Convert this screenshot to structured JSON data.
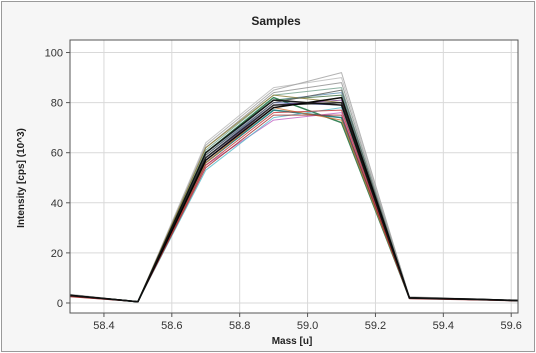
{
  "chart_data": {
    "type": "line",
    "title": "Samples",
    "xlabel": "Mass [u]",
    "ylabel": "Intensity [cps] (10^3)",
    "xlim": [
      58.3,
      59.62
    ],
    "ylim": [
      -4,
      105
    ],
    "x_tick_labels": [
      "58.4",
      "58.6",
      "58.8",
      "59.0",
      "59.2",
      "59.4",
      "59.6"
    ],
    "y_tick_labels": [
      "0",
      "20",
      "40",
      "60",
      "80",
      "100"
    ],
    "grid": true,
    "legend": "none",
    "x": [
      58.3,
      58.5,
      58.7,
      58.9,
      59.1,
      59.3,
      59.5,
      59.62
    ],
    "series": [
      {
        "color": "#b8b8b8",
        "values": [
          3.5,
          0.5,
          64,
          86,
          90,
          2.5,
          1.6,
          1.1
        ]
      },
      {
        "color": "#a0a0a0",
        "values": [
          3.4,
          0.5,
          63,
          85,
          92,
          2.4,
          1.5,
          1.0
        ]
      },
      {
        "color": "#8c8c8c",
        "values": [
          3.2,
          0.5,
          62,
          84,
          88,
          2.2,
          1.5,
          1.0
        ]
      },
      {
        "color": "#6f9e8a",
        "values": [
          3.0,
          0.5,
          61,
          83,
          86,
          2.1,
          1.4,
          1.0
        ]
      },
      {
        "color": "#5b8fb0",
        "values": [
          3.0,
          0.5,
          59,
          81,
          84,
          2.0,
          1.4,
          0.9
        ]
      },
      {
        "color": "#2e7d4f",
        "values": [
          3.0,
          0.5,
          60,
          82,
          72,
          2.0,
          1.4,
          0.9
        ]
      },
      {
        "color": "#3d6e3d",
        "values": [
          3.0,
          0.5,
          60,
          81,
          83,
          2.0,
          1.4,
          0.9
        ]
      },
      {
        "color": "#1f7a7a",
        "values": [
          2.9,
          0.5,
          56,
          77,
          74,
          1.9,
          1.4,
          0.9
        ]
      },
      {
        "color": "#3a4fa0",
        "values": [
          2.9,
          0.5,
          58,
          80,
          79,
          2.0,
          1.4,
          0.9
        ]
      },
      {
        "color": "#7a3f8f",
        "values": [
          2.8,
          0.5,
          57,
          79,
          81,
          1.9,
          1.3,
          0.9
        ]
      },
      {
        "color": "#c060c0",
        "values": [
          2.8,
          0.5,
          55,
          73,
          76,
          1.9,
          1.3,
          0.9
        ]
      },
      {
        "color": "#4fb8c8",
        "values": [
          2.8,
          0.5,
          53,
          74,
          78,
          1.9,
          1.3,
          0.9
        ]
      },
      {
        "color": "#8a7a30",
        "values": [
          2.9,
          0.5,
          62,
          83,
          80,
          2.0,
          1.4,
          0.9
        ]
      },
      {
        "color": "#d07030",
        "values": [
          2.8,
          0.5,
          56,
          78,
          73,
          1.9,
          1.3,
          0.9
        ]
      },
      {
        "color": "#c03030",
        "values": [
          2.6,
          0.5,
          55,
          76,
          77,
          1.8,
          1.3,
          0.9
        ]
      },
      {
        "color": "#a02828",
        "values": [
          2.5,
          0.5,
          54,
          75,
          75,
          1.7,
          1.2,
          0.8
        ]
      },
      {
        "color": "#555555",
        "values": [
          3.0,
          0.5,
          59,
          80,
          85,
          2.0,
          1.4,
          0.9
        ]
      },
      {
        "color": "#222222",
        "values": [
          3.0,
          0.5,
          58,
          79,
          80,
          2.0,
          1.5,
          1.0
        ]
      },
      {
        "color": "#000000",
        "values": [
          3.1,
          0.5,
          57,
          78,
          82,
          2.1,
          1.5,
          1.0
        ]
      },
      {
        "color": "#111111",
        "values": [
          3.0,
          0.5,
          60,
          81,
          79,
          2.0,
          1.4,
          0.9
        ]
      }
    ]
  },
  "colors": {
    "background": "#f6f6f6",
    "plot_background": "#ffffff",
    "grid": "#d9d9d9",
    "frame": "#555555",
    "border": "#9a9a9a"
  }
}
